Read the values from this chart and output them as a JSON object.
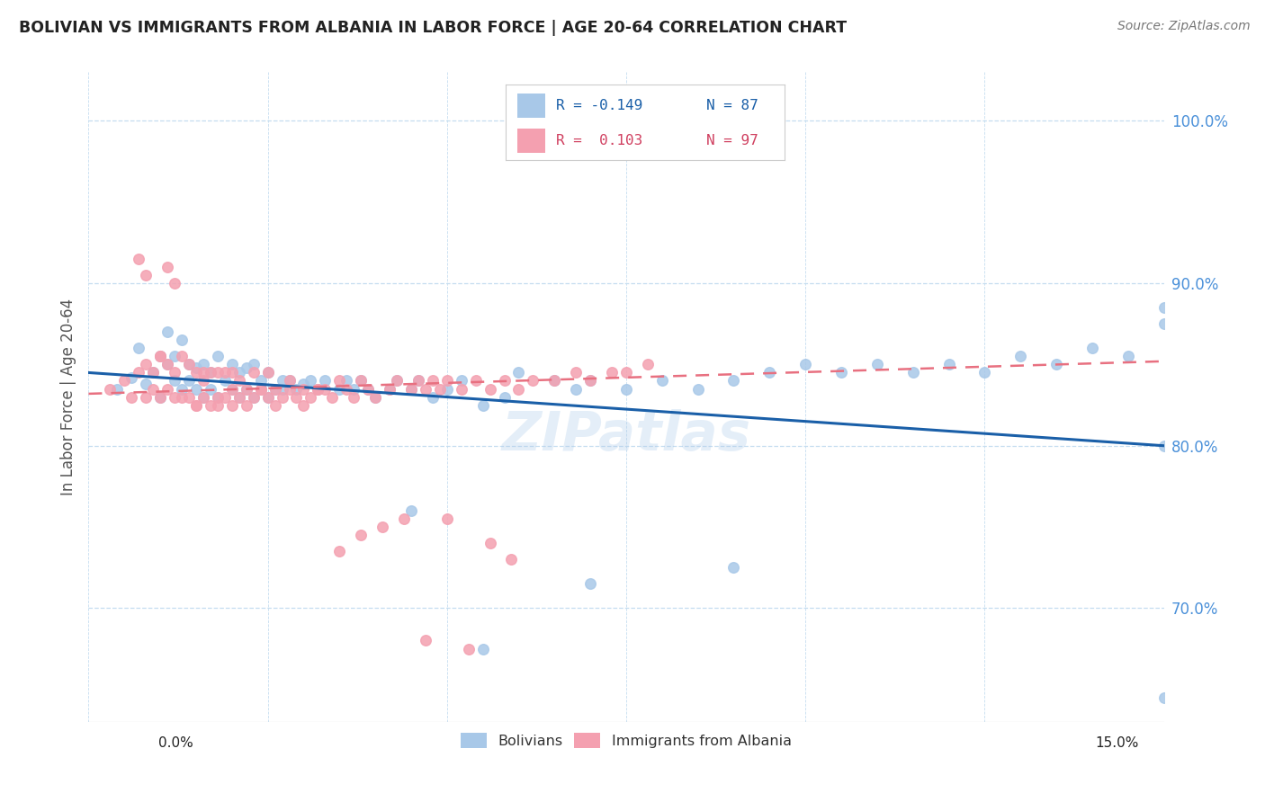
{
  "title": "BOLIVIAN VS IMMIGRANTS FROM ALBANIA IN LABOR FORCE | AGE 20-64 CORRELATION CHART",
  "source": "Source: ZipAtlas.com",
  "ylabel": "In Labor Force | Age 20-64",
  "xlim": [
    0.0,
    15.0
  ],
  "ylim": [
    63.0,
    103.0
  ],
  "yticks": [
    70.0,
    80.0,
    90.0,
    100.0
  ],
  "ytick_labels": [
    "70.0%",
    "80.0%",
    "90.0%",
    "100.0%"
  ],
  "blue_color": "#a8c8e8",
  "pink_color": "#f4a0b0",
  "blue_line_color": "#1a5fa8",
  "pink_line_color": "#e87080",
  "axis_label_color": "#4a90d9",
  "blue_scatter_x": [
    0.4,
    0.6,
    0.7,
    0.8,
    0.9,
    1.0,
    1.0,
    1.1,
    1.1,
    1.2,
    1.2,
    1.3,
    1.3,
    1.4,
    1.4,
    1.5,
    1.5,
    1.6,
    1.6,
    1.7,
    1.7,
    1.8,
    1.8,
    1.9,
    2.0,
    2.0,
    2.1,
    2.1,
    2.2,
    2.2,
    2.3,
    2.3,
    2.4,
    2.4,
    2.5,
    2.5,
    2.6,
    2.7,
    2.7,
    2.8,
    2.9,
    3.0,
    3.1,
    3.2,
    3.3,
    3.5,
    3.6,
    3.7,
    3.8,
    3.9,
    4.0,
    4.2,
    4.3,
    4.5,
    4.6,
    4.8,
    5.0,
    5.2,
    5.5,
    5.8,
    6.0,
    6.5,
    6.8,
    7.0,
    7.5,
    8.0,
    8.5,
    9.0,
    9.5,
    10.0,
    10.5,
    11.0,
    11.5,
    12.0,
    12.5,
    13.0,
    13.5,
    14.0,
    14.5,
    15.0,
    15.0,
    15.0,
    15.0,
    4.5,
    5.5,
    7.0,
    9.0
  ],
  "blue_scatter_y": [
    83.5,
    84.2,
    86.0,
    83.8,
    84.5,
    85.5,
    83.0,
    85.0,
    87.0,
    84.0,
    85.5,
    83.5,
    86.5,
    84.0,
    85.0,
    83.5,
    84.8,
    83.0,
    85.0,
    83.5,
    84.5,
    83.0,
    85.5,
    84.0,
    83.5,
    85.0,
    83.0,
    84.5,
    83.5,
    84.8,
    83.0,
    85.0,
    83.5,
    84.0,
    83.0,
    84.5,
    83.5,
    84.0,
    83.5,
    84.0,
    83.5,
    83.8,
    84.0,
    83.5,
    84.0,
    83.5,
    84.0,
    83.5,
    84.0,
    83.5,
    83.0,
    83.5,
    84.0,
    83.5,
    84.0,
    83.0,
    83.5,
    84.0,
    82.5,
    83.0,
    84.5,
    84.0,
    83.5,
    84.0,
    83.5,
    84.0,
    83.5,
    84.0,
    84.5,
    85.0,
    84.5,
    85.0,
    84.5,
    85.0,
    84.5,
    85.5,
    85.0,
    86.0,
    85.5,
    80.0,
    87.5,
    88.5,
    64.5,
    76.0,
    67.5,
    71.5,
    72.5
  ],
  "pink_scatter_x": [
    0.3,
    0.5,
    0.6,
    0.7,
    0.8,
    0.8,
    0.9,
    0.9,
    1.0,
    1.0,
    1.1,
    1.1,
    1.2,
    1.2,
    1.3,
    1.3,
    1.4,
    1.4,
    1.5,
    1.5,
    1.6,
    1.6,
    1.7,
    1.7,
    1.8,
    1.8,
    1.9,
    1.9,
    2.0,
    2.0,
    2.1,
    2.1,
    2.2,
    2.3,
    2.3,
    2.4,
    2.5,
    2.5,
    2.6,
    2.7,
    2.8,
    2.9,
    3.0,
    3.1,
    3.2,
    3.3,
    3.4,
    3.5,
    3.6,
    3.7,
    3.8,
    3.9,
    4.0,
    4.2,
    4.3,
    4.5,
    4.6,
    4.7,
    4.8,
    4.9,
    5.0,
    5.2,
    5.4,
    5.6,
    5.8,
    6.0,
    6.2,
    6.5,
    6.8,
    7.0,
    7.3,
    7.5,
    7.8,
    0.7,
    0.8,
    1.0,
    1.1,
    1.2,
    1.5,
    1.6,
    1.8,
    2.0,
    2.2,
    2.4,
    2.6,
    2.8,
    3.0,
    3.2,
    3.5,
    3.8,
    4.1,
    4.4,
    4.7,
    5.0,
    5.3,
    5.6,
    5.9
  ],
  "pink_scatter_y": [
    83.5,
    84.0,
    83.0,
    84.5,
    83.0,
    85.0,
    83.5,
    84.5,
    83.0,
    85.5,
    83.5,
    85.0,
    83.0,
    84.5,
    83.0,
    85.5,
    83.0,
    85.0,
    82.5,
    84.5,
    83.0,
    84.5,
    82.5,
    84.5,
    83.0,
    84.5,
    83.0,
    84.5,
    82.5,
    84.5,
    83.0,
    84.0,
    83.5,
    83.0,
    84.5,
    83.5,
    83.0,
    84.5,
    83.5,
    83.0,
    84.0,
    83.0,
    83.5,
    83.0,
    83.5,
    83.5,
    83.0,
    84.0,
    83.5,
    83.0,
    84.0,
    83.5,
    83.0,
    83.5,
    84.0,
    83.5,
    84.0,
    83.5,
    84.0,
    83.5,
    84.0,
    83.5,
    84.0,
    83.5,
    84.0,
    83.5,
    84.0,
    84.0,
    84.5,
    84.0,
    84.5,
    84.5,
    85.0,
    91.5,
    90.5,
    85.5,
    91.0,
    90.0,
    82.5,
    84.0,
    82.5,
    83.5,
    82.5,
    83.5,
    82.5,
    83.5,
    82.5,
    83.5,
    73.5,
    74.5,
    75.0,
    75.5,
    68.0,
    75.5,
    67.5,
    74.0,
    73.0
  ]
}
